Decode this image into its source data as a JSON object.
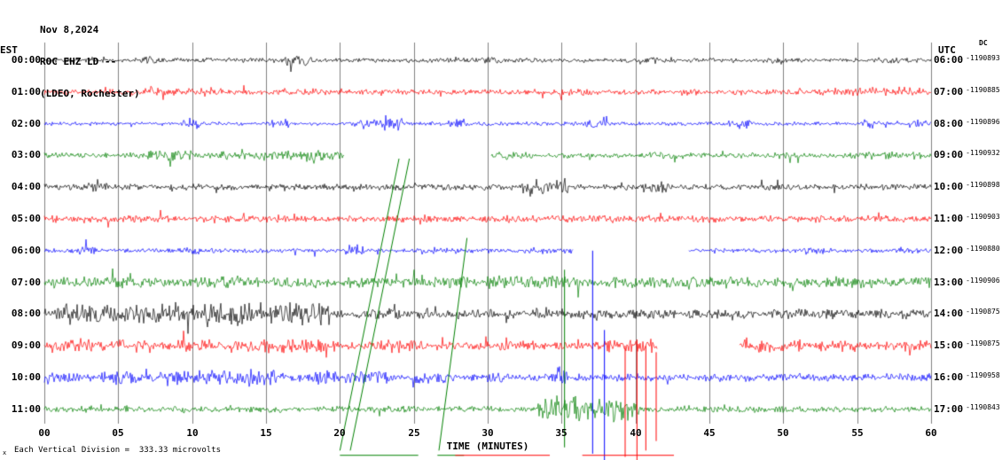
{
  "header": {
    "date": "Nov 8,2024",
    "station_line": "ROC EHZ LD --",
    "location_line": "(LDEO, Rochester)"
  },
  "axis": {
    "left_tz": "EST",
    "right_tz": "UTC",
    "dc_label": "DC",
    "x_ticks": [
      "00",
      "05",
      "10",
      "15",
      "20",
      "25",
      "30",
      "35",
      "40",
      "45",
      "50",
      "55",
      "60"
    ],
    "x_title": "TIME (MINUTES)"
  },
  "footer": {
    "tiny_prefix": "x",
    "scale_note": "Each Vertical Division =  333.33 microvolts"
  },
  "colors": {
    "black": "#000000",
    "red": "#ff0000",
    "blue": "#0000ff",
    "green": "#008000",
    "grid": "#808080",
    "text": "#000000"
  },
  "chart_data": {
    "type": "line",
    "kind": "seismogram-helicorder",
    "title": "ROC EHZ LD -- (LDEO, Rochester) Nov 8,2024",
    "x_range": [
      0,
      60
    ],
    "minutes_per_row": 60,
    "grid": true,
    "xlabel": "TIME (MINUTES)",
    "vertical_division_microvolts": 333.33,
    "rows": [
      {
        "est": "00:00",
        "utc": "06:00",
        "dc": "-1190893",
        "color_key": "black",
        "base": 3,
        "bursts": [
          [
            6.3,
            7.6,
            6
          ],
          [
            16.3,
            18.2,
            7
          ],
          [
            29.4,
            31.0,
            5
          ],
          [
            40.3,
            42.0,
            5
          ],
          [
            48.8,
            50.0,
            4
          ],
          [
            56.3,
            58.2,
            5
          ]
        ],
        "gaps": []
      },
      {
        "est": "01:00",
        "utc": "07:00",
        "dc": "-1190885",
        "color_key": "red",
        "base": 3.5,
        "bursts": [
          [
            5.8,
            12.2,
            6
          ],
          [
            17.4,
            19.2,
            5
          ],
          [
            24.8,
            26.2,
            4
          ],
          [
            34.8,
            37.2,
            6
          ],
          [
            43.3,
            45.2,
            5
          ],
          [
            52.3,
            59.2,
            6
          ]
        ],
        "gaps": []
      },
      {
        "est": "02:00",
        "utc": "08:00",
        "dc": "-1190896",
        "color_key": "blue",
        "base": 2.5,
        "bursts": [
          [
            9.4,
            10.6,
            7
          ],
          [
            15.4,
            16.6,
            6
          ],
          [
            21.3,
            24.2,
            8
          ],
          [
            27.3,
            28.6,
            6
          ],
          [
            33.3,
            34.6,
            4
          ],
          [
            36.3,
            38.2,
            6
          ],
          [
            46.3,
            48.2,
            6
          ],
          [
            55.3,
            57.2,
            6
          ],
          [
            58.8,
            59.8,
            5
          ]
        ],
        "gaps": []
      },
      {
        "est": "03:00",
        "utc": "09:00",
        "dc": "-1190932",
        "color_key": "green",
        "base": 3.5,
        "bursts": [
          [
            5.8,
            10.2,
            7
          ],
          [
            11.8,
            17.2,
            6
          ],
          [
            17.2,
            20.2,
            7
          ],
          [
            30.3,
            33.2,
            5
          ],
          [
            40.8,
            43.2,
            5
          ],
          [
            48.8,
            51.2,
            4
          ],
          [
            54.8,
            59.8,
            5
          ]
        ],
        "gaps": [
          [
            20.3,
            30.2
          ]
        ]
      },
      {
        "est": "04:00",
        "utc": "10:00",
        "dc": "-1190898",
        "color_key": "black",
        "base": 4,
        "bursts": [
          [
            2.8,
            4.2,
            6
          ],
          [
            15.8,
            17.2,
            5
          ],
          [
            25.8,
            27.2,
            5
          ],
          [
            32.3,
            35.6,
            11
          ],
          [
            40.3,
            42.2,
            7
          ],
          [
            48.3,
            50.2,
            5
          ],
          [
            56.8,
            58.2,
            5
          ]
        ],
        "gaps": []
      },
      {
        "est": "05:00",
        "utc": "11:00",
        "dc": "-1190903",
        "color_key": "red",
        "base": 4.5,
        "bursts": [
          [
            3.8,
            5.2,
            5
          ],
          [
            14.8,
            16.2,
            5
          ],
          [
            22.8,
            24.2,
            5
          ],
          [
            30.8,
            32.2,
            5
          ],
          [
            37.8,
            39.2,
            5
          ],
          [
            46.8,
            48.2,
            5
          ],
          [
            54.8,
            56.2,
            5
          ]
        ],
        "gaps": []
      },
      {
        "est": "06:00",
        "utc": "12:00",
        "dc": "-1190880",
        "color_key": "blue",
        "base": 3,
        "bursts": [
          [
            2.3,
            3.6,
            6
          ],
          [
            9.3,
            10.6,
            5
          ],
          [
            20.3,
            21.6,
            8
          ],
          [
            26.3,
            27.6,
            5
          ],
          [
            32.8,
            34.2,
            5
          ],
          [
            44.8,
            45.8,
            4
          ],
          [
            51.3,
            52.6,
            4
          ],
          [
            57.8,
            59.2,
            4
          ]
        ],
        "gaps": [
          [
            35.8,
            43.6
          ]
        ]
      },
      {
        "est": "07:00",
        "utc": "13:00",
        "dc": "-1190906",
        "color_key": "green",
        "base": 7,
        "bursts": [
          [
            0,
            3.2,
            8
          ],
          [
            11.8,
            13.2,
            8
          ],
          [
            20.8,
            22.2,
            8
          ],
          [
            29.8,
            36.2,
            9
          ],
          [
            43.8,
            46.2,
            8
          ],
          [
            51.8,
            60,
            7
          ]
        ],
        "gaps": []
      },
      {
        "est": "08:00",
        "utc": "14:00",
        "dc": "-1190875",
        "color_key": "black",
        "base": 6,
        "bursts": [
          [
            0.8,
            8.2,
            13
          ],
          [
            8.2,
            19.2,
            15
          ],
          [
            21.8,
            24.2,
            9
          ],
          [
            27.8,
            30.2,
            8
          ],
          [
            32.8,
            35.2,
            9
          ],
          [
            37.3,
            38.6,
            8
          ],
          [
            43.8,
            45.2,
            7
          ],
          [
            50.8,
            53.2,
            7
          ],
          [
            57.8,
            59.2,
            7
          ]
        ],
        "gaps": []
      },
      {
        "est": "09:00",
        "utc": "15:00",
        "dc": "-1190875",
        "color_key": "red",
        "base": 5,
        "bursts": [
          [
            0,
            7.2,
            9
          ],
          [
            8.8,
            11.2,
            8
          ],
          [
            12.8,
            20.2,
            9
          ],
          [
            21.8,
            25.2,
            8
          ],
          [
            26.8,
            28.2,
            7
          ],
          [
            30.8,
            33.2,
            7
          ],
          [
            37.8,
            41.2,
            9
          ],
          [
            47.2,
            51.2,
            8
          ],
          [
            52.8,
            55.2,
            7
          ],
          [
            56.8,
            59.8,
            7
          ]
        ],
        "gaps": [
          [
            41.5,
            47.0
          ]
        ]
      },
      {
        "est": "10:00",
        "utc": "16:00",
        "dc": "-1190958",
        "color_key": "blue",
        "base": 5,
        "bursts": [
          [
            0,
            2.2,
            8
          ],
          [
            3.8,
            6.2,
            9
          ],
          [
            7.8,
            16.2,
            10
          ],
          [
            17.8,
            23.2,
            9
          ],
          [
            24.8,
            27.2,
            8
          ],
          [
            29.8,
            31.2,
            7
          ],
          [
            34.7,
            35.4,
            13
          ],
          [
            36.8,
            38.2,
            6
          ],
          [
            41.8,
            43.2,
            5
          ],
          [
            47.8,
            49.2,
            5
          ],
          [
            54.8,
            56.2,
            5
          ]
        ],
        "gaps": []
      },
      {
        "est": "11:00",
        "utc": "17:00",
        "dc": "-1190843",
        "color_key": "green",
        "base": 4,
        "bursts": [
          [
            1.8,
            3.2,
            5
          ],
          [
            8.8,
            10.2,
            5
          ],
          [
            13.8,
            16.2,
            5
          ],
          [
            19.8,
            22.2,
            5
          ],
          [
            24.8,
            26.2,
            4
          ],
          [
            33.4,
            40.2,
            17
          ],
          [
            42.8,
            44.2,
            5
          ],
          [
            49.8,
            51.2,
            4
          ],
          [
            55.8,
            57.2,
            4
          ]
        ],
        "gaps": []
      }
    ],
    "annotations": {
      "diagonals": [
        {
          "color_key": "green",
          "from": [
            20.0,
            12.3
          ],
          "to": [
            24.0,
            3.1
          ]
        },
        {
          "color_key": "green",
          "from": [
            20.7,
            12.3
          ],
          "to": [
            24.7,
            3.1
          ]
        },
        {
          "color_key": "green",
          "from": [
            26.7,
            12.3
          ],
          "to": [
            28.6,
            5.6
          ]
        }
      ],
      "spikes": [
        {
          "color_key": "green",
          "min": 35.2,
          "from_row": 6.6,
          "to_row": 12.2
        },
        {
          "color_key": "blue",
          "min": 37.1,
          "from_row": 6.0,
          "to_row": 12.4
        },
        {
          "color_key": "blue",
          "min": 37.9,
          "from_row": 8.5,
          "to_row": 12.6
        },
        {
          "color_key": "red",
          "min": 39.3,
          "from_row": 9.0,
          "to_row": 12.5
        },
        {
          "color_key": "red",
          "min": 40.1,
          "from_row": 8.8,
          "to_row": 12.6
        },
        {
          "color_key": "red",
          "min": 40.7,
          "from_row": 9.0,
          "to_row": 12.3
        },
        {
          "color_key": "red",
          "min": 41.4,
          "from_row": 9.2,
          "to_row": 12.0
        }
      ],
      "baseline_segments": [
        {
          "color_key": "green",
          "from_min": 20.0,
          "to_min": 25.3,
          "row": 12.45
        },
        {
          "color_key": "green",
          "from_min": 26.6,
          "to_min": 28.4,
          "row": 12.45
        },
        {
          "color_key": "red",
          "from_min": 27.8,
          "to_min": 34.2,
          "row": 12.45
        },
        {
          "color_key": "red",
          "from_min": 36.4,
          "to_min": 42.6,
          "row": 12.45
        }
      ]
    }
  }
}
